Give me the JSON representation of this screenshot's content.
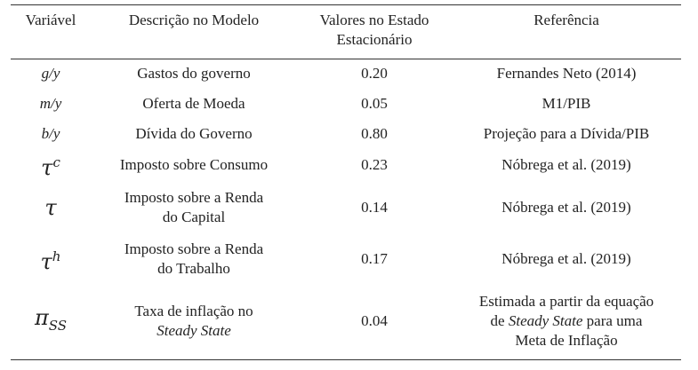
{
  "table": {
    "header": [
      "Variável",
      "Descrição no Modelo",
      [
        "Valores no Estado",
        "Estacionário"
      ],
      "Referência"
    ],
    "rows": [
      {
        "variable": {
          "base": "g/y"
        },
        "description": [
          "Gastos do governo"
        ],
        "value": "0.20",
        "reference": [
          "Fernandes Neto (2014)"
        ]
      },
      {
        "variable": {
          "base": "m/y"
        },
        "description": [
          "Oferta de Moeda"
        ],
        "value": "0.05",
        "reference": [
          "M1/PIB"
        ]
      },
      {
        "variable": {
          "base": "b/y"
        },
        "description": [
          "Dívida do Governo"
        ],
        "value": "0.80",
        "reference": [
          "Projeção para a Dívida/PIB"
        ]
      },
      {
        "variable": {
          "base": "τ",
          "sup": "c"
        },
        "description": [
          "Imposto sobre Consumo"
        ],
        "value": "0.23",
        "reference": [
          "Nóbrega et al. (2019)"
        ]
      },
      {
        "variable": {
          "base": "τ"
        },
        "description": [
          "Imposto sobre a Renda",
          "do Capital"
        ],
        "value": "0.14",
        "reference": [
          "Nóbrega et al. (2019)"
        ]
      },
      {
        "variable": {
          "base": "τ",
          "sup": "h"
        },
        "description": [
          "Imposto sobre a Renda",
          "do Trabalho"
        ],
        "value": "0.17",
        "reference": [
          "Nóbrega et al. (2019)"
        ]
      },
      {
        "variable": {
          "base": "π",
          "sub": "SS"
        },
        "description": [
          "Taxa de inflação no",
          "Steady State"
        ],
        "value": "0.04",
        "reference": [
          "Estimada a partir da equação",
          "de ",
          "Steady State",
          " para uma",
          "Meta de Inflação"
        ]
      }
    ]
  }
}
